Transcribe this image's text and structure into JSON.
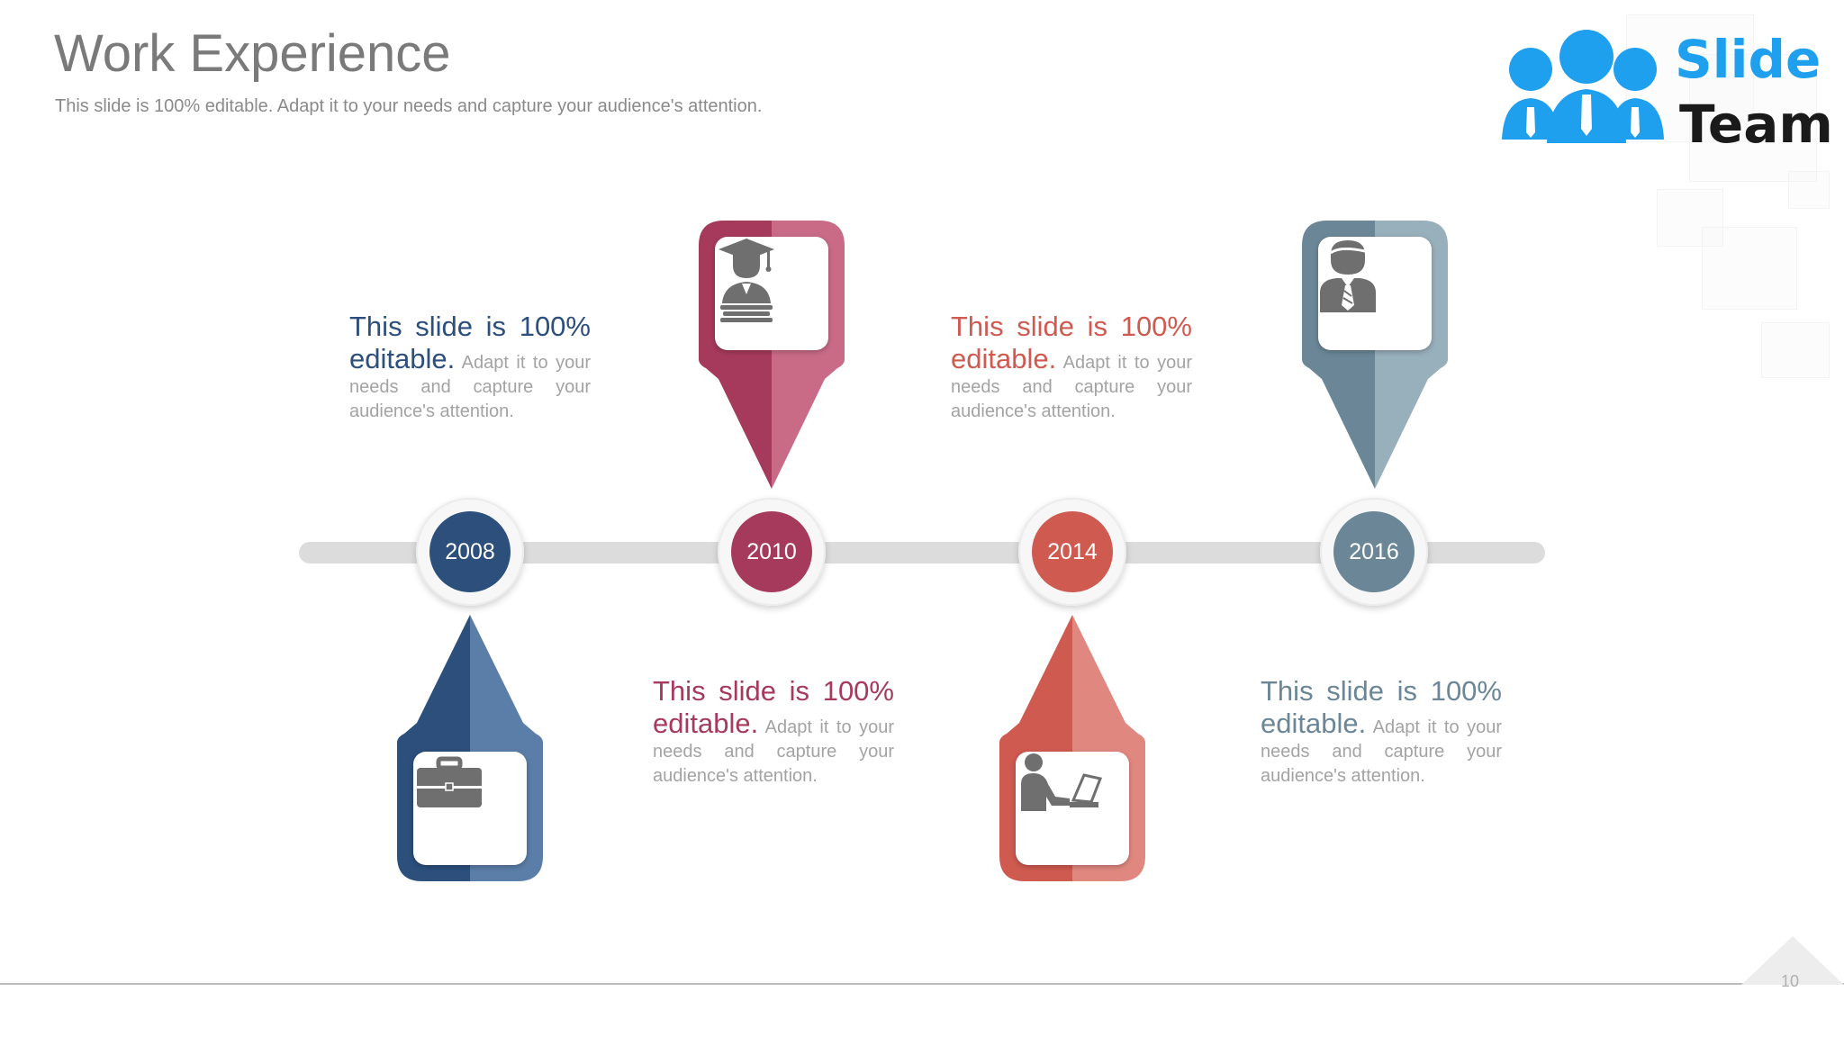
{
  "header": {
    "title": "Work Experience",
    "subtitle": "This slide is 100% editable. Adapt it to your needs and capture your audience's attention."
  },
  "logo": {
    "word1": "Slide",
    "word2": "Team",
    "icon": "people-group-icon",
    "brand_color": "#1ea0ef"
  },
  "timeline": {
    "milestones": [
      {
        "year": "2008",
        "color_dark": "#2c4f7c",
        "color_light": "#5b7ea8",
        "icon": "briefcase-icon"
      },
      {
        "year": "2010",
        "color_dark": "#a63a5c",
        "color_light": "#c96b87",
        "icon": "graduate-icon"
      },
      {
        "year": "2014",
        "color_dark": "#cf5a50",
        "color_light": "#e08880",
        "icon": "person-laptop-icon"
      },
      {
        "year": "2016",
        "color_dark": "#6b8797",
        "color_light": "#98afbc",
        "icon": "businessman-icon"
      }
    ],
    "texts": [
      {
        "lead": "This slide is 100% editable.",
        "body": "Adapt it to your needs and capture your audience's attention.",
        "color": "#2c4f7c"
      },
      {
        "lead": "This slide is 100% editable.",
        "body": "Adapt it to your needs and capture your audience's attention.",
        "color": "#a63a5c"
      },
      {
        "lead": "This slide is 100% editable.",
        "body": "Adapt it to your needs and capture your audience's attention.",
        "color": "#cf5a50"
      },
      {
        "lead": "This slide is 100% editable.",
        "body": "Adapt it to your needs and capture your audience's attention.",
        "color": "#6b8797"
      }
    ]
  },
  "footer": {
    "page_number": "10"
  }
}
